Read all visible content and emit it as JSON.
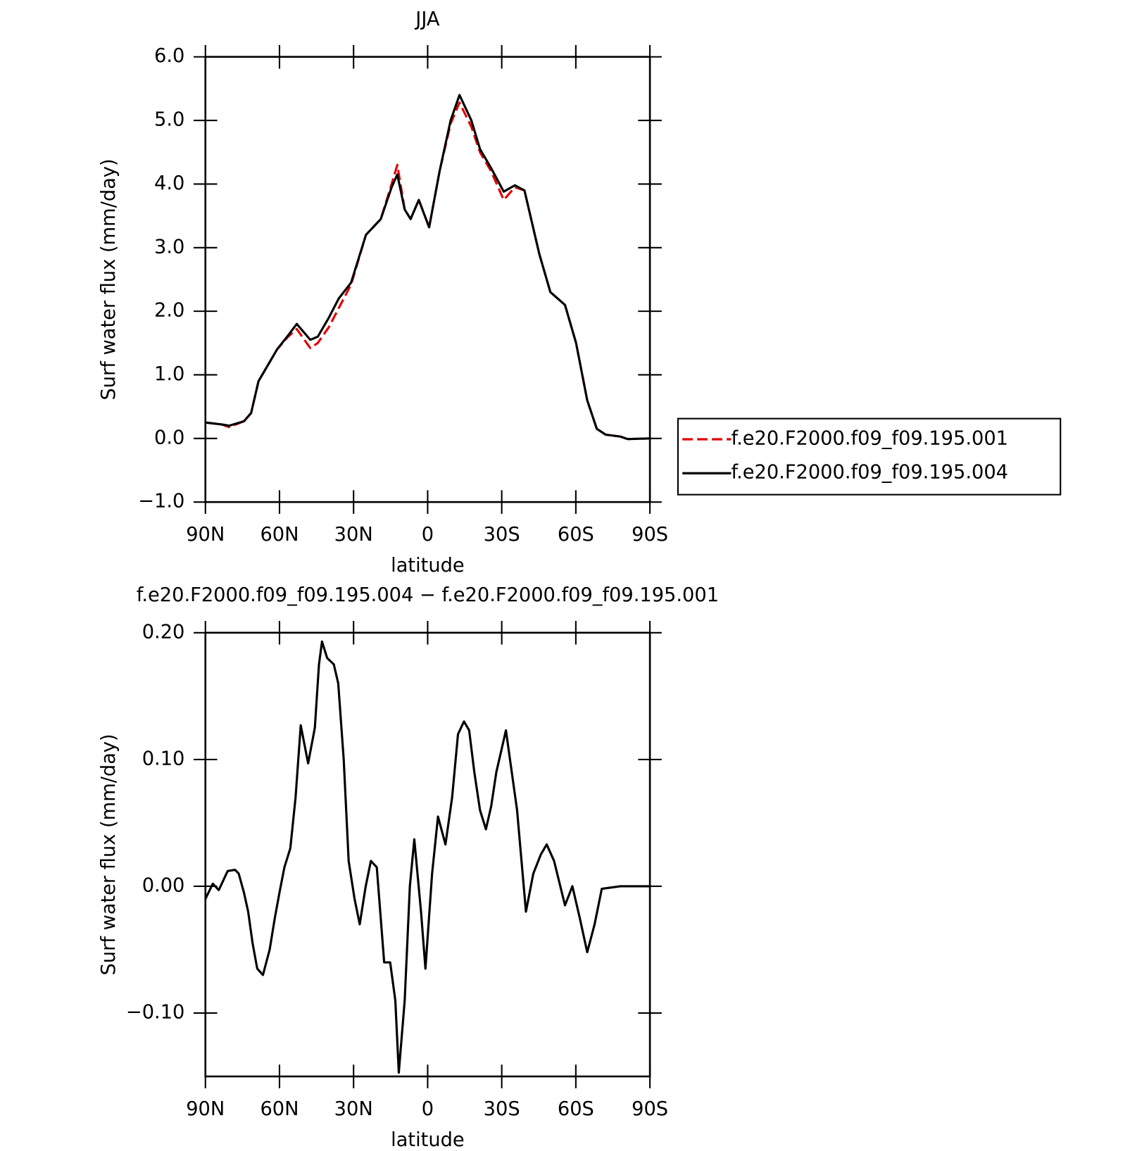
{
  "chart_data": [
    {
      "type": "line",
      "title": "JJA",
      "xlabel": "latitude",
      "ylabel": "Surf water flux (mm/day)",
      "x": [
        90,
        83.4,
        80.4,
        74.4,
        71.5,
        68.5,
        64,
        61,
        56.5,
        53,
        47.5,
        44.5,
        40,
        36,
        31,
        25,
        19,
        14.6,
        12.3,
        9.3,
        6.9,
        3.6,
        -0.6,
        -4.8,
        -9.3,
        -12.9,
        -17.7,
        -21.2,
        -25.7,
        -30.8,
        -35.3,
        -39.2,
        -45.2,
        -49.7,
        -55.6,
        -60.1,
        -64.6,
        -68.5,
        -72.1,
        -78,
        -81,
        -90
      ],
      "series": [
        {
          "name": "f.e20.F2000.f09_f09.195.001",
          "color": "#e00000",
          "dash": true,
          "values": [
            0.25,
            0.22,
            0.18,
            0.27,
            0.4,
            0.9,
            1.2,
            1.4,
            1.6,
            1.72,
            1.42,
            1.5,
            1.75,
            2.05,
            2.42,
            3.2,
            3.45,
            4.0,
            4.3,
            3.6,
            3.45,
            3.75,
            3.32,
            4.2,
            4.95,
            5.28,
            4.9,
            4.5,
            4.2,
            3.75,
            3.95,
            3.9,
            2.9,
            2.3,
            2.1,
            1.5,
            0.6,
            0.15,
            0.06,
            0.03,
            -0.01,
            0.0
          ]
        },
        {
          "name": "f.e20.F2000.f09_f09.195.004",
          "color": "#000000",
          "dash": false,
          "values": [
            0.25,
            0.22,
            0.2,
            0.27,
            0.4,
            0.9,
            1.2,
            1.4,
            1.62,
            1.8,
            1.55,
            1.6,
            1.9,
            2.2,
            2.45,
            3.2,
            3.45,
            3.95,
            4.15,
            3.6,
            3.45,
            3.75,
            3.32,
            4.2,
            5.0,
            5.4,
            5.0,
            4.55,
            4.25,
            3.88,
            3.98,
            3.9,
            2.9,
            2.3,
            2.1,
            1.5,
            0.6,
            0.15,
            0.06,
            0.03,
            -0.01,
            0.0
          ]
        }
      ],
      "xlim": [
        90,
        -90
      ],
      "xticks": [
        {
          "value": 90,
          "label": "90N"
        },
        {
          "value": 60,
          "label": "60N"
        },
        {
          "value": 30,
          "label": "30N"
        },
        0,
        {
          "value": -30,
          "label": "30S"
        },
        {
          "value": -60,
          "label": "60S"
        },
        {
          "value": -90,
          "label": "90S"
        }
      ],
      "ylim": [
        -1,
        6
      ],
      "yticks": [
        {
          "value": -1,
          "label": "−1.0"
        },
        {
          "value": 0,
          "label": "0.0"
        },
        {
          "value": 1,
          "label": "1.0"
        },
        {
          "value": 2,
          "label": "2.0"
        },
        {
          "value": 3,
          "label": "3.0"
        },
        {
          "value": 4,
          "label": "4.0"
        },
        {
          "value": 5,
          "label": "5.0"
        },
        {
          "value": 6,
          "label": "6.0"
        }
      ],
      "legend": "right",
      "grid": false
    },
    {
      "type": "line",
      "title": "f.e20.F2000.f09_f09.195.004 − f.e20.F2000.f09_f09.195.001",
      "xlabel": "latitude",
      "ylabel": "Surf water flux (mm/day)",
      "x": [
        90,
        87,
        84.6,
        81,
        78,
        76.5,
        74.4,
        72.7,
        70.9,
        69,
        66.7,
        64,
        61.9,
        60,
        58,
        55.6,
        53.5,
        51.4,
        48.4,
        45.7,
        44,
        42.8,
        40.7,
        38,
        36.2,
        34,
        32,
        29.6,
        27.5,
        25.1,
        23,
        20.6,
        17.6,
        15.2,
        13.1,
        11.7,
        9.3,
        7.2,
        5.4,
        2.7,
        0.9,
        -1.8,
        -4.2,
        -7.2,
        -9.9,
        -12.3,
        -14.7,
        -16.8,
        -18.9,
        -21.2,
        -23.6,
        -25.7,
        -27.8,
        -31.7,
        -36.2,
        -39.8,
        -42.8,
        -45.8,
        -48.2,
        -51.2,
        -55.6,
        -58.6,
        -61.6,
        -64.6,
        -67.6,
        -70.5,
        -78,
        -90
      ],
      "series": [
        {
          "color": "#000000",
          "dash": false,
          "values": [
            -0.01,
            0.002,
            -0.003,
            0.012,
            0.013,
            0.01,
            -0.005,
            -0.02,
            -0.045,
            -0.065,
            -0.07,
            -0.05,
            -0.025,
            -0.005,
            0.015,
            0.03,
            0.07,
            0.127,
            0.097,
            0.125,
            0.175,
            0.193,
            0.18,
            0.175,
            0.16,
            0.1,
            0.02,
            -0.01,
            -0.03,
            0.0,
            0.02,
            0.015,
            -0.06,
            -0.06,
            -0.09,
            -0.147,
            -0.09,
            0.0,
            0.037,
            -0.02,
            -0.065,
            0.01,
            0.055,
            0.033,
            0.07,
            0.12,
            0.13,
            0.123,
            0.09,
            0.06,
            0.045,
            0.063,
            0.09,
            0.123,
            0.06,
            -0.02,
            0.01,
            0.025,
            0.033,
            0.02,
            -0.015,
            0.0,
            -0.025,
            -0.052,
            -0.03,
            -0.002,
            0.0,
            0.0
          ]
        }
      ],
      "xlim": [
        90,
        -90
      ],
      "xticks": [
        {
          "value": 90,
          "label": "90N"
        },
        {
          "value": 60,
          "label": "60N"
        },
        {
          "value": 30,
          "label": "30N"
        },
        0,
        {
          "value": -30,
          "label": "30S"
        },
        {
          "value": -60,
          "label": "60S"
        },
        {
          "value": -90,
          "label": "90S"
        }
      ],
      "ylim": [
        -0.15,
        0.2
      ],
      "yticks": [
        {
          "value": -0.1,
          "label": "−0.10"
        },
        {
          "value": 0,
          "label": "0.00"
        },
        {
          "value": 0.1,
          "label": "0.10"
        },
        {
          "value": 0.2,
          "label": "0.20"
        }
      ],
      "grid": false
    }
  ]
}
